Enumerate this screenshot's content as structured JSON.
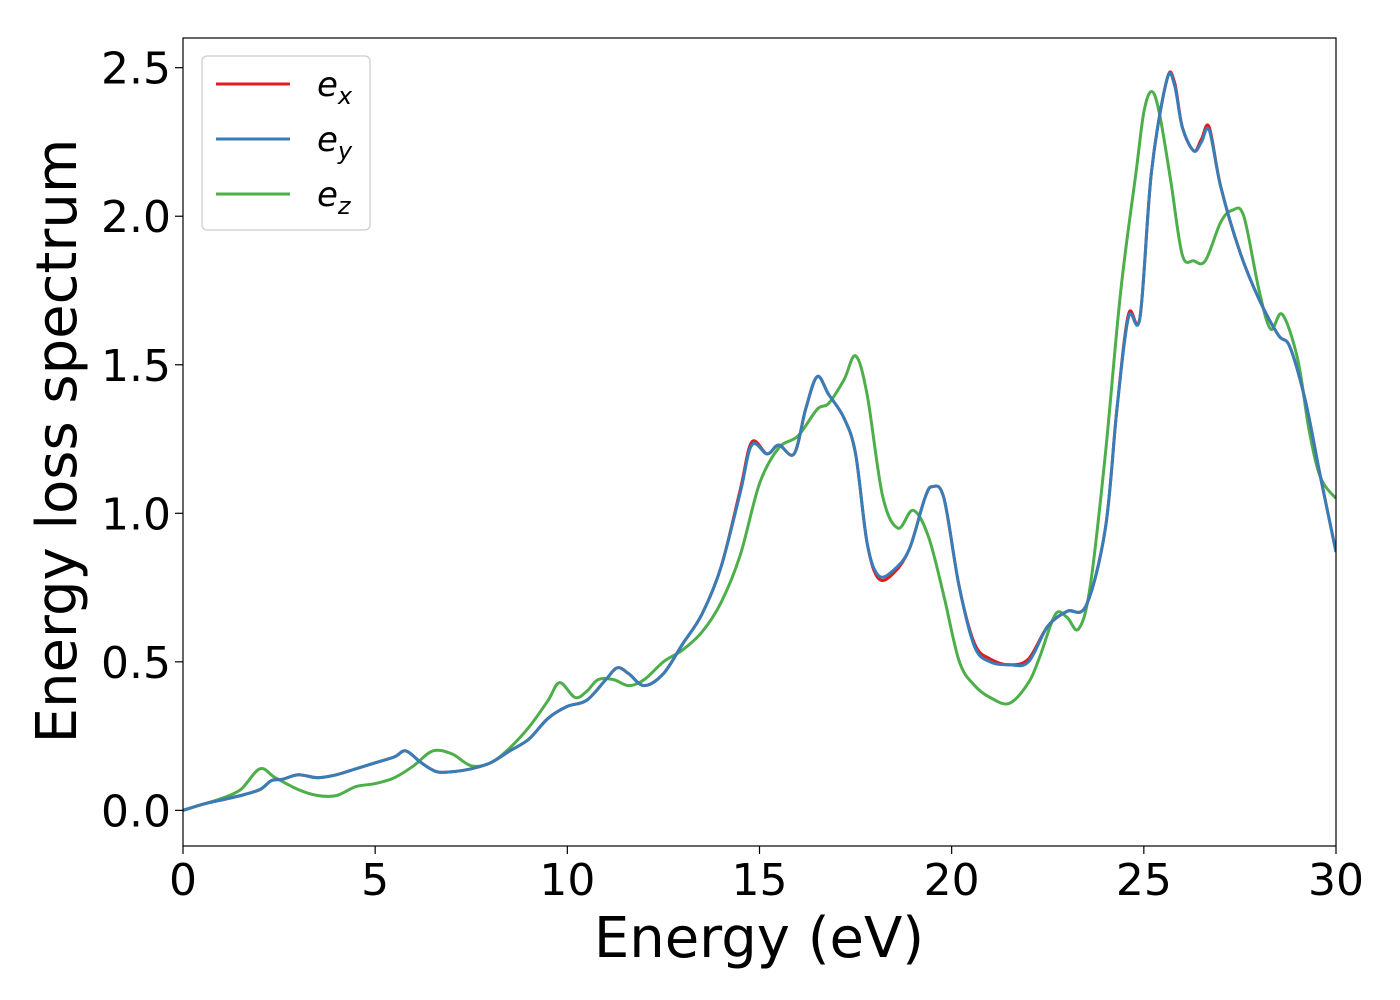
{
  "chart_data": {
    "type": "line",
    "xlabel": "Energy (eV)",
    "ylabel": "Energy loss spectrum",
    "xlim": [
      0,
      30
    ],
    "ylim": [
      -0.12,
      2.6
    ],
    "xticks": [
      0,
      5,
      10,
      15,
      20,
      25,
      30
    ],
    "xtick_labels": [
      "0",
      "5",
      "10",
      "15",
      "20",
      "25",
      "30"
    ],
    "yticks": [
      0.0,
      0.5,
      1.0,
      1.5,
      2.0,
      2.5
    ],
    "ytick_labels": [
      "0.0",
      "0.5",
      "1.0",
      "1.5",
      "2.0",
      "2.5"
    ],
    "grid": false,
    "legend_position": "top-left",
    "series": [
      {
        "name": "e_x",
        "label_main": "e",
        "label_sub": "x",
        "color": "#e41a1c",
        "x": [
          0,
          0.5,
          1,
          1.5,
          2,
          2.3,
          2.6,
          3,
          3.5,
          4,
          4.5,
          5,
          5.5,
          5.8,
          6.2,
          6.6,
          7,
          7.5,
          8,
          8.5,
          9,
          9.5,
          10,
          10.5,
          11,
          11.3,
          11.6,
          12,
          12.5,
          13,
          13.5,
          14,
          14.5,
          14.8,
          15.2,
          15.5,
          15.9,
          16.2,
          16.5,
          16.8,
          17.2,
          17.5,
          17.8,
          18.1,
          18.5,
          18.9,
          19.3,
          19.5,
          19.8,
          20.2,
          20.6,
          21,
          21.5,
          22,
          22.5,
          23,
          23.5,
          24,
          24.3,
          24.6,
          24.9,
          25.2,
          25.6,
          25.8,
          26,
          26.3,
          26.5,
          26.7,
          27,
          27.5,
          28,
          28.5,
          28.8,
          29.2,
          29.6,
          30
        ],
        "values": [
          0,
          0.02,
          0.035,
          0.05,
          0.07,
          0.1,
          0.105,
          0.12,
          0.11,
          0.12,
          0.14,
          0.16,
          0.18,
          0.2,
          0.16,
          0.13,
          0.13,
          0.14,
          0.16,
          0.2,
          0.24,
          0.31,
          0.35,
          0.37,
          0.44,
          0.48,
          0.46,
          0.42,
          0.46,
          0.56,
          0.66,
          0.82,
          1.08,
          1.24,
          1.2,
          1.23,
          1.2,
          1.35,
          1.46,
          1.4,
          1.32,
          1.2,
          0.9,
          0.78,
          0.8,
          0.88,
          1.05,
          1.09,
          1.05,
          0.75,
          0.56,
          0.51,
          0.49,
          0.51,
          0.62,
          0.67,
          0.69,
          0.95,
          1.35,
          1.67,
          1.66,
          2.15,
          2.46,
          2.45,
          2.3,
          2.22,
          2.26,
          2.3,
          2.1,
          1.88,
          1.72,
          1.6,
          1.56,
          1.38,
          1.12,
          0.87
        ]
      },
      {
        "name": "e_y",
        "label_main": "e",
        "label_sub": "y",
        "color": "#377eb8",
        "x": [
          0,
          0.5,
          1,
          1.5,
          2,
          2.3,
          2.6,
          3,
          3.5,
          4,
          4.5,
          5,
          5.5,
          5.8,
          6.2,
          6.6,
          7,
          7.5,
          8,
          8.5,
          9,
          9.5,
          10,
          10.5,
          11,
          11.3,
          11.6,
          12,
          12.5,
          13,
          13.5,
          14,
          14.5,
          14.8,
          15.2,
          15.5,
          15.9,
          16.2,
          16.5,
          16.8,
          17.2,
          17.5,
          17.8,
          18.1,
          18.5,
          18.9,
          19.3,
          19.5,
          19.8,
          20.2,
          20.6,
          21,
          21.5,
          22,
          22.5,
          23,
          23.5,
          24,
          24.3,
          24.6,
          24.9,
          25.2,
          25.6,
          25.8,
          26,
          26.3,
          26.5,
          26.7,
          27,
          27.5,
          28,
          28.5,
          28.8,
          29.2,
          29.6,
          30
        ],
        "values": [
          0,
          0.02,
          0.035,
          0.05,
          0.07,
          0.1,
          0.105,
          0.12,
          0.11,
          0.12,
          0.14,
          0.16,
          0.18,
          0.2,
          0.16,
          0.13,
          0.13,
          0.14,
          0.16,
          0.2,
          0.24,
          0.31,
          0.35,
          0.37,
          0.44,
          0.48,
          0.46,
          0.42,
          0.46,
          0.56,
          0.66,
          0.82,
          1.07,
          1.23,
          1.2,
          1.23,
          1.2,
          1.35,
          1.46,
          1.4,
          1.32,
          1.2,
          0.9,
          0.79,
          0.81,
          0.88,
          1.05,
          1.09,
          1.05,
          0.75,
          0.55,
          0.5,
          0.49,
          0.5,
          0.62,
          0.67,
          0.69,
          0.95,
          1.35,
          1.66,
          1.66,
          2.15,
          2.46,
          2.44,
          2.3,
          2.22,
          2.25,
          2.29,
          2.1,
          1.88,
          1.72,
          1.6,
          1.56,
          1.38,
          1.12,
          0.87
        ]
      },
      {
        "name": "e_z",
        "label_main": "e",
        "label_sub": "z",
        "color": "#4daf4a",
        "x": [
          0,
          0.5,
          1,
          1.5,
          2,
          2.4,
          3,
          3.5,
          4,
          4.5,
          5,
          5.5,
          6,
          6.5,
          7,
          7.5,
          8,
          8.5,
          9,
          9.5,
          9.8,
          10.2,
          10.5,
          10.8,
          11.2,
          11.6,
          12,
          12.5,
          13,
          13.5,
          14,
          14.5,
          15,
          15.5,
          16,
          16.5,
          16.8,
          17.2,
          17.5,
          17.8,
          18.2,
          18.6,
          19,
          19.4,
          19.8,
          20.2,
          20.6,
          21,
          21.5,
          22,
          22.3,
          22.7,
          23,
          23.3,
          23.6,
          24,
          24.4,
          24.8,
          25,
          25.2,
          25.4,
          25.7,
          26,
          26.3,
          26.6,
          27,
          27.3,
          27.6,
          28,
          28.3,
          28.6,
          29,
          29.3,
          29.6,
          30
        ],
        "values": [
          0,
          0.02,
          0.04,
          0.07,
          0.14,
          0.11,
          0.07,
          0.05,
          0.05,
          0.08,
          0.09,
          0.11,
          0.15,
          0.2,
          0.19,
          0.15,
          0.16,
          0.21,
          0.28,
          0.37,
          0.43,
          0.38,
          0.4,
          0.44,
          0.44,
          0.42,
          0.44,
          0.5,
          0.54,
          0.6,
          0.7,
          0.86,
          1.1,
          1.22,
          1.26,
          1.35,
          1.37,
          1.45,
          1.53,
          1.4,
          1.06,
          0.95,
          1.01,
          0.92,
          0.72,
          0.5,
          0.42,
          0.38,
          0.36,
          0.43,
          0.52,
          0.66,
          0.65,
          0.61,
          0.75,
          1.2,
          1.75,
          2.15,
          2.35,
          2.42,
          2.35,
          2.12,
          1.87,
          1.85,
          1.85,
          1.98,
          2.02,
          2.0,
          1.75,
          1.62,
          1.67,
          1.52,
          1.28,
          1.12,
          1.05
        ]
      }
    ]
  }
}
